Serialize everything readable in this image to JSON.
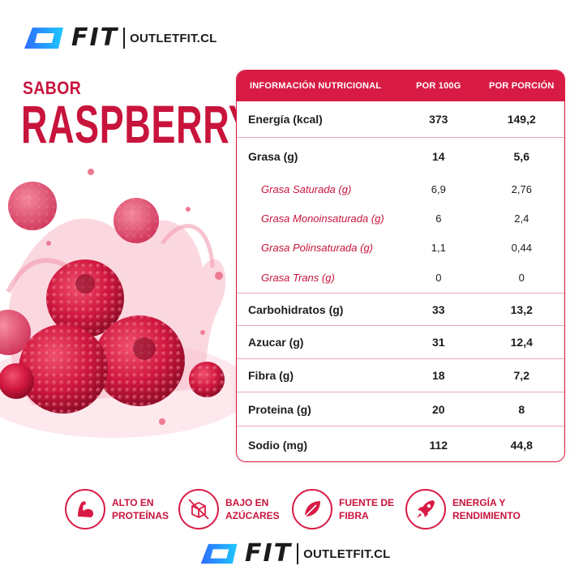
{
  "brand": {
    "wordmark": "FIT",
    "website": "OUTLETFIT.CL",
    "mark_color": "#1e7bff"
  },
  "title": {
    "label": "SABOR",
    "flavor": "RASPBERRY",
    "color": "#c8143c"
  },
  "table": {
    "headers": [
      "INFORMACIÓN NUTRICIONAL",
      "POR 100G",
      "POR PORCIÓN"
    ],
    "header_color": "#d81b45",
    "rows": {
      "energia": {
        "name": "Energía (kcal)",
        "per100": "373",
        "portion": "149,2"
      },
      "grasa": {
        "name": "Grasa (g)",
        "per100": "14",
        "portion": "5,6"
      },
      "grasa_sat": {
        "name": "Grasa Saturada (g)",
        "per100": "6,9",
        "portion": "2,76"
      },
      "grasa_mono": {
        "name": "Grasa Monoinsaturada (g)",
        "per100": "6",
        "portion": "2,4"
      },
      "grasa_poli": {
        "name": "Grasa Polinsaturada (g)",
        "per100": "1,1",
        "portion": "0,44"
      },
      "grasa_trans": {
        "name": "Grasa Trans (g)",
        "per100": "0",
        "portion": "0"
      },
      "carbos": {
        "name": "Carbohidratos (g)",
        "per100": "33",
        "portion": "13,2"
      },
      "azucar": {
        "name": "Azucar (g)",
        "per100": "31",
        "portion": "12,4"
      },
      "fibra": {
        "name": "Fibra (g)",
        "per100": "18",
        "portion": "7,2"
      },
      "proteina": {
        "name": "Proteina (g)",
        "per100": "20",
        "portion": "8"
      },
      "sodio": {
        "name": "Sodio (mg)",
        "per100": "112",
        "portion": "44,8"
      }
    }
  },
  "features": [
    {
      "icon": "muscle-arm-icon",
      "label": "ALTO EN\nPROTEÍNAS"
    },
    {
      "icon": "crossed-box-icon",
      "label": "BAJO EN\nAZÚCARES"
    },
    {
      "icon": "leaf-icon",
      "label": "FUENTE DE\nFIBRA"
    },
    {
      "icon": "rocket-icon",
      "label": "ENERGÍA Y\nRENDIMIENTO"
    }
  ]
}
